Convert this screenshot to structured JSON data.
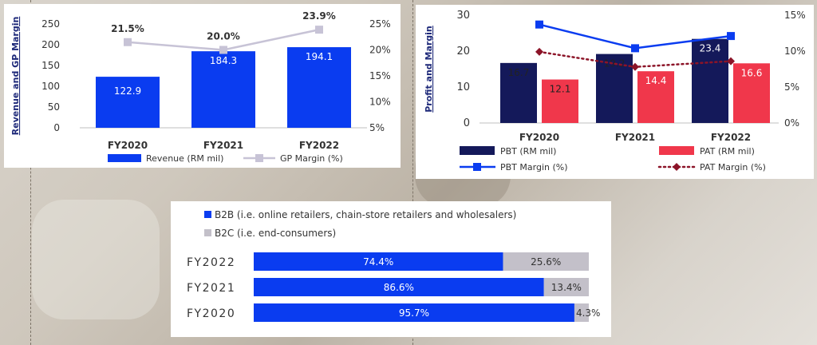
{
  "chart_data": [
    {
      "type": "bar",
      "categories": [
        "FY2020",
        "FY2021",
        "FY2022"
      ],
      "series": [
        {
          "name": "Revenue (RM mil)",
          "type": "bar",
          "axis": "left",
          "values": [
            122.9,
            184.3,
            194.1
          ],
          "color": "#0a3cf0"
        },
        {
          "name": "GP Margin (%)",
          "type": "line",
          "axis": "right",
          "values": [
            21.5,
            20.0,
            23.9
          ],
          "color": "#c7c3d6"
        }
      ],
      "bar_labels": [
        "122.9",
        "184.3",
        "194.1"
      ],
      "line_labels": [
        "21.5%",
        "20.0%",
        "23.9%"
      ],
      "ylabel": "Revenue and GP Margin",
      "ylim": [
        0,
        250
      ],
      "yticks": [
        "0",
        "50",
        "100",
        "150",
        "200",
        "250"
      ],
      "y2lim": [
        5,
        25
      ],
      "y2ticks": [
        "5%",
        "10%",
        "15%",
        "20%",
        "25%"
      ],
      "grid": false,
      "legend": "bottom"
    },
    {
      "type": "bar",
      "categories": [
        "FY2020",
        "FY2021",
        "FY2022"
      ],
      "series": [
        {
          "name": "PBT (RM mil)",
          "type": "bar",
          "axis": "left",
          "values": [
            16.7,
            19.2,
            23.4
          ],
          "color": "#14195a"
        },
        {
          "name": "PAT (RM mil)",
          "type": "bar",
          "axis": "left",
          "values": [
            12.1,
            14.4,
            16.6
          ],
          "color": "#f0374b"
        },
        {
          "name": "PBT Margin (%)",
          "type": "line",
          "axis": "right",
          "values": [
            13.7,
            10.4,
            12.1
          ],
          "color": "#0a3cf0"
        },
        {
          "name": "PAT Margin (%)",
          "type": "line",
          "axis": "right",
          "values": [
            9.9,
            7.8,
            8.6
          ],
          "color": "#8c1428"
        }
      ],
      "pbt_labels": [
        "16.7",
        "19.2",
        "23.4"
      ],
      "pat_labels": [
        "12.1",
        "14.4",
        "16.6"
      ],
      "ylabel": "Profit and Margin",
      "ylim": [
        0,
        30
      ],
      "yticks": [
        "0",
        "10",
        "20",
        "30"
      ],
      "y2lim": [
        0,
        15
      ],
      "y2ticks": [
        "0%",
        "5%",
        "10%",
        "15%"
      ],
      "grid": false,
      "legend": "bottom"
    },
    {
      "type": "bar",
      "orientation": "horizontal",
      "stacked": true,
      "categories": [
        "FY2022",
        "FY2021",
        "FY2020"
      ],
      "series": [
        {
          "name": "B2B (i.e. online retailers, chain-store retailers and wholesalers)",
          "values": [
            74.4,
            86.6,
            95.7
          ],
          "color": "#0a3cf0"
        },
        {
          "name": "B2C (i.e. end-consumers)",
          "values": [
            25.6,
            13.4,
            4.3
          ],
          "color": "#c3c0c9"
        }
      ],
      "b2b_labels": [
        "74.4%",
        "86.6%",
        "95.7%"
      ],
      "b2c_labels": [
        "25.6%",
        "13.4%",
        "4.3%"
      ],
      "xlim": [
        0,
        100
      ],
      "legend": "top-left"
    }
  ]
}
